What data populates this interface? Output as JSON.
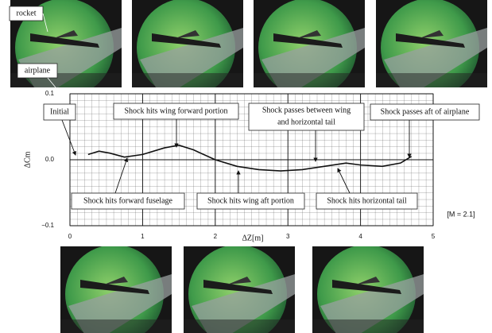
{
  "chart_data": {
    "type": "line",
    "ylabel": "ΔCm",
    "xlabel": "ΔZ[m]",
    "mach": "[M = 2.1]",
    "x": [
      0.25,
      0.4,
      0.55,
      0.75,
      1.0,
      1.3,
      1.5,
      1.7,
      2.0,
      2.3,
      2.6,
      2.9,
      3.2,
      3.5,
      3.8,
      4.0,
      4.3,
      4.55,
      4.7
    ],
    "values": [
      0.008,
      0.013,
      0.01,
      0.004,
      0.008,
      0.018,
      0.022,
      0.015,
      0.0,
      -0.01,
      -0.015,
      -0.017,
      -0.015,
      -0.01,
      -0.005,
      -0.008,
      -0.01,
      -0.005,
      0.005
    ],
    "color": "#111111",
    "xlim": [
      0,
      5
    ],
    "ylim": [
      -0.1,
      0.1
    ],
    "xticks": [
      0,
      1,
      2,
      3,
      4,
      5
    ],
    "yticks": [
      {
        "value": -0.1,
        "label": "−0.1"
      },
      {
        "value": 0,
        "label": "0.0"
      },
      0.1
    ],
    "grid": true,
    "annotations": [
      "Initial",
      "Shock hits wing forward portion",
      [
        "Shock passes between wing",
        "and horizontal tail"
      ],
      "Shock passes aft of airplane",
      "Shock hits forward fuselage",
      "Shock hits wing aft portion",
      "Shock hits horizontal tail"
    ],
    "photo_labels": [
      "rocket",
      "airplane"
    ]
  }
}
